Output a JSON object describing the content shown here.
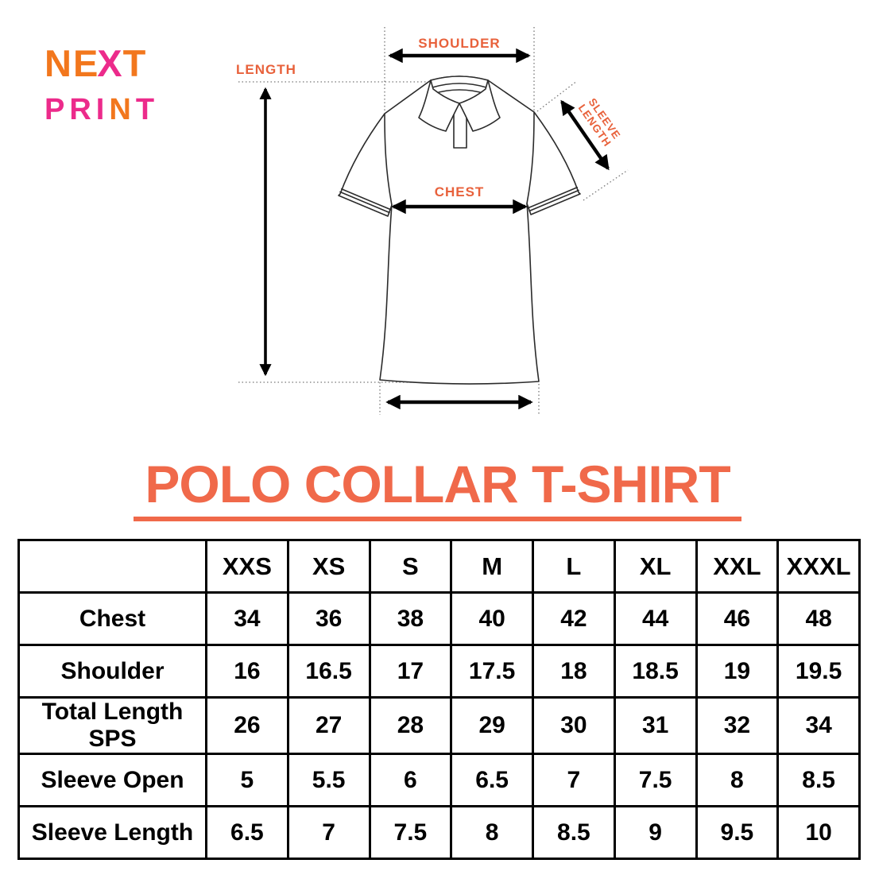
{
  "brand": {
    "word1": {
      "seg1": "NE",
      "seg2": "X",
      "seg3": "T"
    },
    "word2": {
      "seg1": "PRI",
      "seg2": "N",
      "seg3": "T"
    }
  },
  "colors": {
    "brand_orange": "#F2771D",
    "brand_pink": "#EC2B8B",
    "diagram_label_orange": "#E8613B",
    "title_orange": "#F0694A",
    "line_black": "#000000"
  },
  "diagram": {
    "labels": {
      "length": "LENGTH",
      "shoulder": "SHOULDER",
      "chest": "CHEST",
      "sleeve_line1": "SLEEVE",
      "sleeve_line2": "LENGTH"
    }
  },
  "title": {
    "text": "POLO COLLAR T-SHIRT"
  },
  "size_chart": {
    "columns": [
      "XXS",
      "XS",
      "S",
      "M",
      "L",
      "XL",
      "XXL",
      "XXXL"
    ],
    "rows": [
      {
        "label": "Chest",
        "values": [
          "34",
          "36",
          "38",
          "40",
          "42",
          "44",
          "46",
          "48"
        ]
      },
      {
        "label": "Shoulder",
        "values": [
          "16",
          "16.5",
          "17",
          "17.5",
          "18",
          "18.5",
          "19",
          "19.5"
        ]
      },
      {
        "label": "Total Length SPS",
        "values": [
          "26",
          "27",
          "28",
          "29",
          "30",
          "31",
          "32",
          "34"
        ]
      },
      {
        "label": "Sleeve Open",
        "values": [
          "5",
          "5.5",
          "6",
          "6.5",
          "7",
          "7.5",
          "8",
          "8.5"
        ]
      },
      {
        "label": "Sleeve Length",
        "values": [
          "6.5",
          "7",
          "7.5",
          "8",
          "8.5",
          "9",
          "9.5",
          "10"
        ]
      }
    ]
  }
}
